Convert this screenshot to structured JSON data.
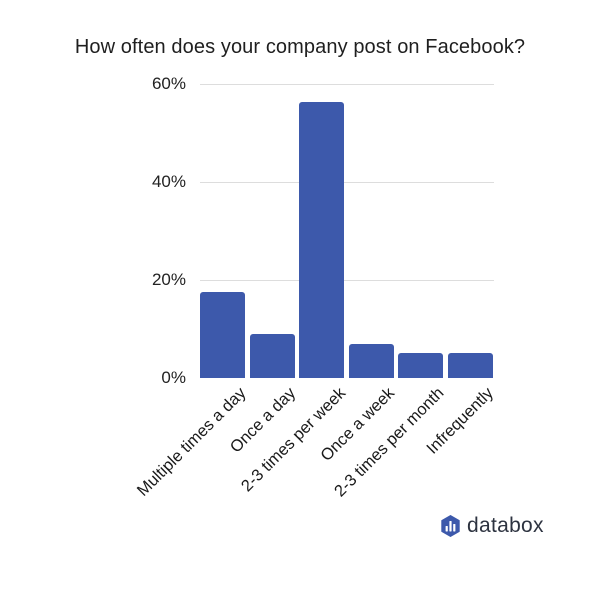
{
  "chart_data": {
    "type": "bar",
    "title": "How often does your company post on Facebook?",
    "categories": [
      "Multiple times a day",
      "Once a day",
      "2-3 times per week",
      "Once a week",
      "2-3 times per month",
      "Infrequently"
    ],
    "values": [
      17.5,
      8.9,
      56.3,
      7.0,
      5.2,
      5.2
    ],
    "unit": "%",
    "xlabel": "",
    "ylabel": "",
    "ylim": [
      0,
      60
    ],
    "yticks": [
      "0%",
      "20%",
      "40%",
      "60%"
    ],
    "grid": true,
    "legend": null,
    "bar_color": "#3d59ab"
  },
  "branding": {
    "logo_text": "databox",
    "logo_icon": "databox-hexagon-bars-icon",
    "logo_color": "#3d59ab"
  }
}
